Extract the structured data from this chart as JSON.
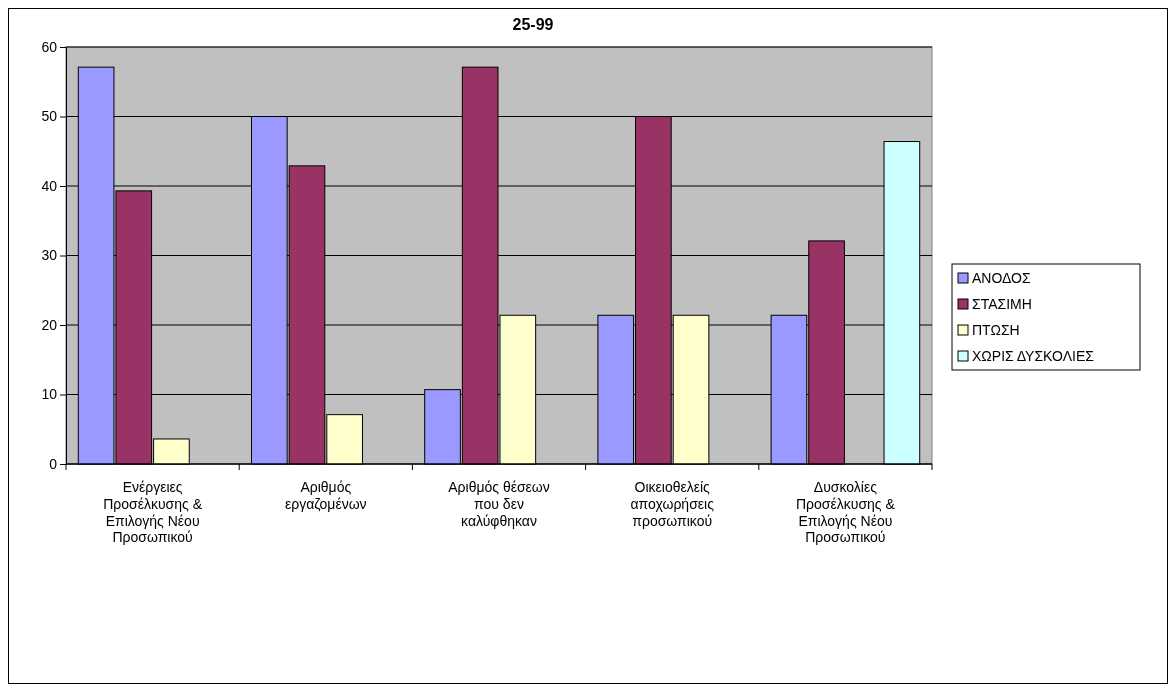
{
  "chart_data": {
    "type": "bar",
    "title": "25-99",
    "categories": [
      "Ενέργειες Προσέλκυσης & Επιλογής Νέου Προσωπικού",
      "Αριθμός εργαζομένων",
      "Αριθμός θέσεων που δεν καλύφθηκαν",
      "Οικειοθελείς αποχωρήσεις προσωπικού",
      "Δυσκολίες Προσέλκυσης & Επιλογής Νέου Προσωπικού"
    ],
    "series": [
      {
        "name": "ΑΝΟΔΟΣ",
        "color": "#9999ff",
        "values": [
          57.1,
          50,
          10.7,
          21.4,
          21.4
        ]
      },
      {
        "name": "ΣΤΑΣΙΜΗ",
        "color": "#993366",
        "values": [
          39.3,
          42.9,
          57.1,
          50,
          32.1
        ]
      },
      {
        "name": "ΠΤΩΣΗ",
        "color": "#ffffcc",
        "values": [
          3.6,
          7.1,
          21.4,
          21.4,
          null
        ]
      },
      {
        "name": "ΧΩΡΙΣ ΔΥΣΚΟΛΙΕΣ",
        "color": "#ccffff",
        "values": [
          null,
          null,
          null,
          null,
          46.4
        ]
      }
    ],
    "ylim": [
      0,
      60
    ],
    "yticks": [
      0,
      10,
      20,
      30,
      40,
      50,
      60
    ],
    "grid": "y",
    "legend": "right"
  }
}
